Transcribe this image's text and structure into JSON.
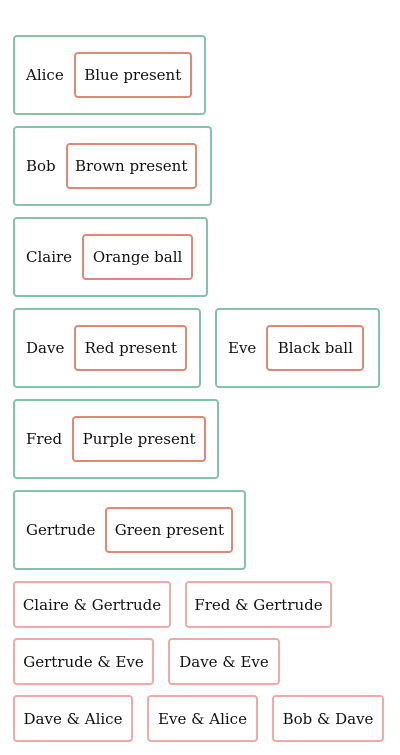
{
  "people": [
    {
      "name": "Alice",
      "gift": "Blue present"
    },
    {
      "name": "Bob",
      "gift": "Brown present"
    },
    {
      "name": "Claire",
      "gift": "Orange ball"
    },
    {
      "name": "Dave",
      "gift": "Red present"
    },
    {
      "name": "Eve",
      "gift": "Black ball"
    },
    {
      "name": "Fred",
      "gift": "Purple present"
    },
    {
      "name": "Gertrude",
      "gift": "Green present"
    }
  ],
  "swaps": [
    "Claire & Gertrude",
    "Fred & Gertrude",
    "Gertrude & Eve",
    "Dave & Eve",
    "Dave & Alice",
    "Eve & Alice",
    "Bob & Dave"
  ],
  "colors": {
    "person_border": "#86c2a8",
    "gift_border": "#e08878",
    "swap_border": "#eeaaa8"
  }
}
